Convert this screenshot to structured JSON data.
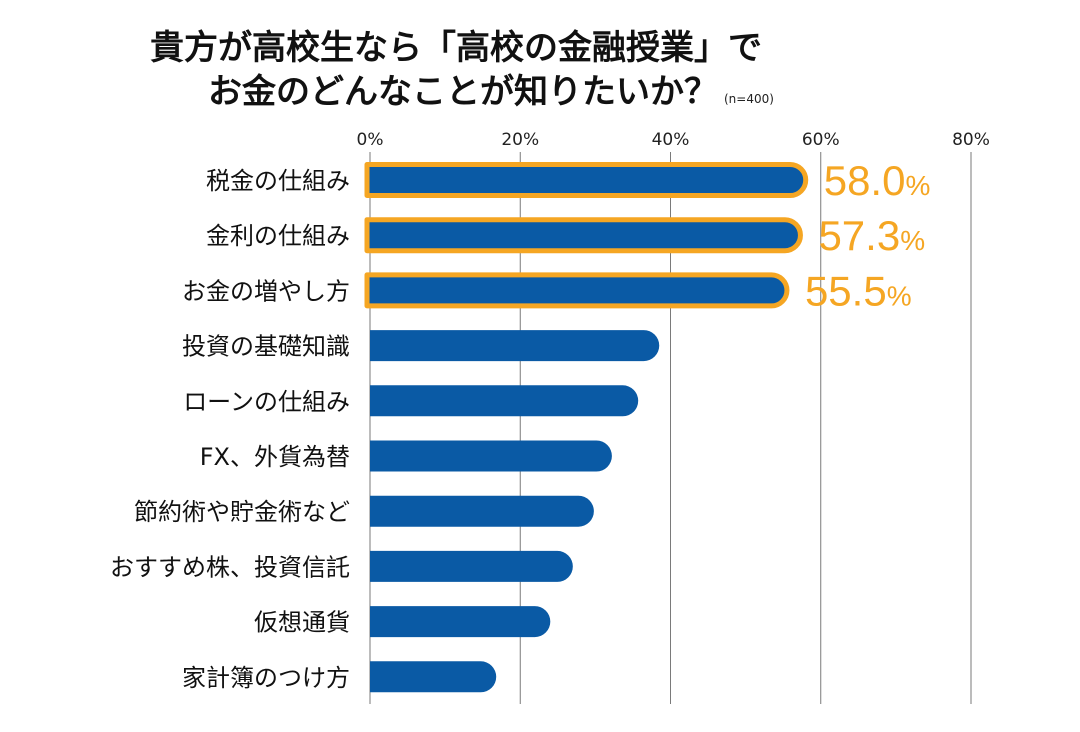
{
  "title": {
    "line1": "貴方が高校生なら「高校の金融授業」で",
    "line2": "お金のどんなことが知りたいか？",
    "note": "(n=400)"
  },
  "chart_data": {
    "type": "bar",
    "orientation": "horizontal",
    "title": "貴方が高校生なら「高校の金融授業」でお金のどんなことが知りたいか？",
    "sample": "(n=400)",
    "xlabel": "",
    "ylabel": "",
    "xlim": [
      0,
      80
    ],
    "ticks": [
      0,
      20,
      40,
      60,
      80
    ],
    "tick_labels": [
      "0%",
      "20%",
      "40%",
      "60%",
      "80%"
    ],
    "grid": true,
    "categories": [
      "税金の仕組み",
      "金利の仕組み",
      "お金の増やし方",
      "投資の基礎知識",
      "ローンの仕組み",
      "FX、外貨為替",
      "節約術や貯金術など",
      "おすすめ株、投資信託",
      "仮想通貨",
      "家計簿のつけ方"
    ],
    "values": [
      58.0,
      57.3,
      55.5,
      38.5,
      35.7,
      32.2,
      29.8,
      27.0,
      24.0,
      16.8
    ],
    "highlight": [
      true,
      true,
      true,
      false,
      false,
      false,
      false,
      false,
      false,
      false
    ],
    "data_labels": [
      "58.0",
      "57.3",
      "55.5",
      null,
      null,
      null,
      null,
      null,
      null,
      null
    ],
    "data_label_suffix": "%",
    "colors": {
      "bar": "#0a5aa5",
      "highlight": "#f5a623",
      "grid": "#7a7a7a"
    }
  }
}
